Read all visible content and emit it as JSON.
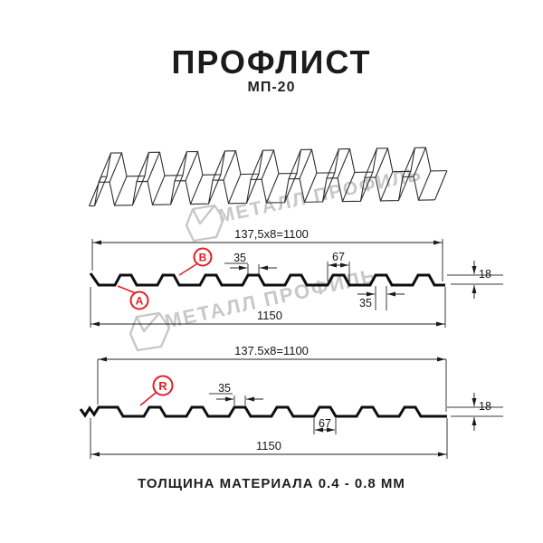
{
  "header": {
    "title": "ПРОФЛИСТ",
    "subtitle": "МП-20"
  },
  "watermark": {
    "text": "МЕТАЛЛ ПРОФИЛЬ"
  },
  "profile_top": {
    "dim_width_formula": "137,5x8=1100",
    "dim_crest_top": "35",
    "dim_pitch": "67",
    "dim_height": "18",
    "dim_crest_bottom": "35",
    "dim_total_width": "1150",
    "marker_a": "A",
    "marker_b": "B"
  },
  "profile_bottom": {
    "dim_width_formula": "137.5x8=1100",
    "dim_crest_top": "35",
    "dim_height": "18",
    "dim_pitch": "67",
    "dim_total_width": "1150",
    "marker_r": "R"
  },
  "footer": {
    "text": "ТОЛЩИНА МАТЕРИАЛА 0.4 - 0.8 ММ"
  },
  "colors": {
    "accent_red": "#e31e24",
    "line": "#0f0f0f",
    "watermark_gray": "#c8c8c8"
  }
}
